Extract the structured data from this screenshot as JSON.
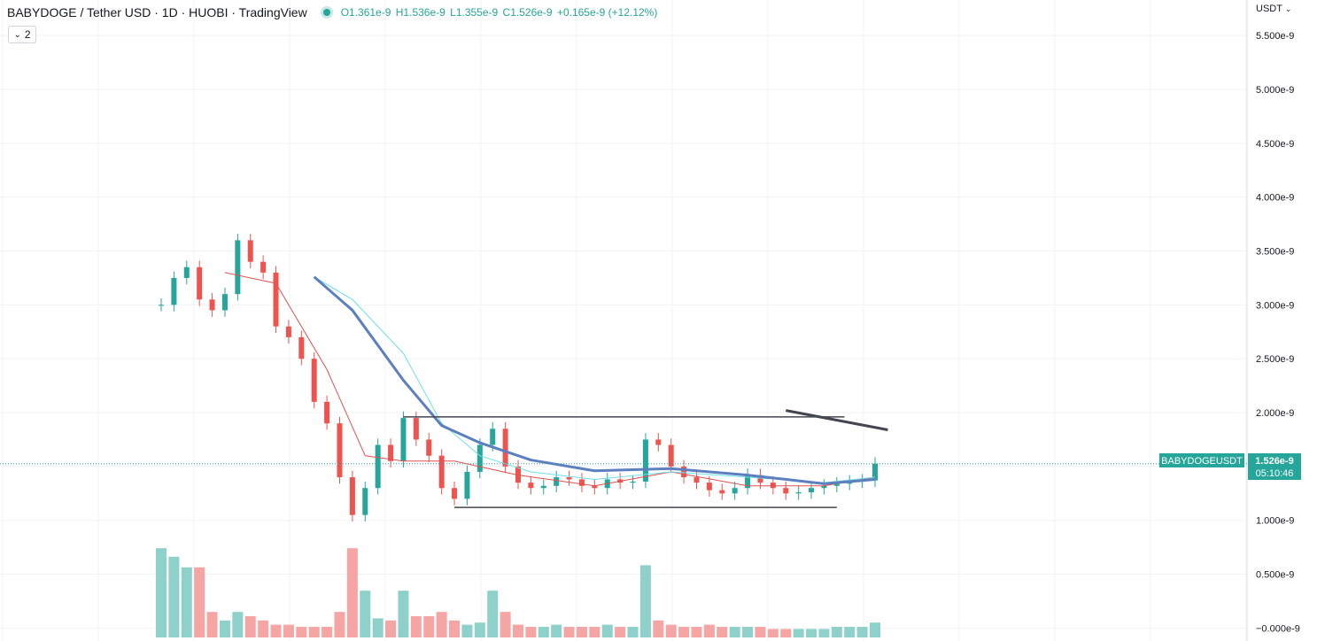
{
  "header": {
    "title": "BABYDOGE / Tether USD · 1D · HUOBI · TradingView",
    "ohlc": {
      "open": "O1.361e-9",
      "high": "H1.536e-9",
      "low": "L1.355e-9",
      "close": "C1.526e-9",
      "change": "+0.165e-9 (+12.12%)"
    },
    "indicator_count": "2",
    "currency": "USDT"
  },
  "price_label": {
    "symbol": "BABYDOGEUSDT",
    "price": "1.526e-9",
    "countdown": "05:10:46"
  },
  "colors": {
    "up": "#26a69a",
    "down": "#ef5350",
    "ma_fast": "#e05050",
    "ma_mid": "#6fe0e8",
    "ma_slow": "#5b7fbf",
    "drawing": "#434651"
  },
  "chart_data": {
    "type": "line",
    "title": "BABYDOGE / Tether USD · 1D · HUOBI · TradingView",
    "ylim": [
      -0.12,
      5.83
    ],
    "y_tick_values": [
      5.5,
      5.0,
      4.5,
      4.0,
      3.5,
      3.0,
      2.5,
      2.0,
      1.5,
      1.0,
      0.5,
      0.0
    ],
    "y_tick_labels": [
      "5.500e-9",
      "5.000e-9",
      "4.500e-9",
      "4.000e-9",
      "3.500e-9",
      "3.000e-9",
      "2.500e-9",
      "2.000e-9",
      "1.500e-9",
      "1.000e-9",
      "0.500e-9",
      "−0.000e-9"
    ],
    "grid": true,
    "close_series": {
      "name": "BABYDOGEUSDT",
      "x": [
        0,
        5,
        10,
        15,
        20,
        25,
        30,
        35,
        40,
        45,
        50,
        55,
        60,
        65,
        70,
        75,
        80,
        85,
        90,
        95,
        100,
        105,
        110,
        115,
        120,
        125,
        130,
        135,
        140,
        145,
        150,
        155,
        160,
        165,
        170,
        175,
        180,
        185,
        190,
        195,
        200,
        205,
        210,
        215,
        220,
        225,
        230,
        235,
        240,
        245,
        250,
        255,
        260,
        265,
        270,
        275,
        280
      ],
      "values": [
        3.0,
        3.25,
        3.35,
        3.05,
        2.95,
        3.1,
        3.6,
        3.4,
        3.3,
        2.8,
        2.7,
        2.5,
        2.1,
        1.9,
        1.4,
        1.05,
        1.3,
        1.7,
        1.55,
        1.95,
        1.75,
        1.6,
        1.3,
        1.2,
        1.45,
        1.7,
        1.85,
        1.5,
        1.35,
        1.3,
        1.32,
        1.4,
        1.38,
        1.32,
        1.3,
        1.38,
        1.35,
        1.36,
        1.75,
        1.7,
        1.5,
        1.4,
        1.35,
        1.28,
        1.25,
        1.3,
        1.42,
        1.35,
        1.3,
        1.25,
        1.26,
        1.3,
        1.32,
        1.34,
        1.36,
        1.37,
        1.526
      ]
    },
    "ma_series": [
      {
        "x": [
          25,
          45,
          65,
          80,
          95,
          115,
          140,
          170,
          200,
          230,
          260,
          280
        ],
        "values": [
          3.3,
          3.2,
          2.4,
          1.6,
          1.55,
          1.55,
          1.42,
          1.32,
          1.45,
          1.32,
          1.32,
          1.4
        ]
      },
      {
        "x": [
          60,
          75,
          95,
          110,
          125,
          145,
          170,
          200,
          230,
          260,
          280
        ],
        "values": [
          3.26,
          3.05,
          2.55,
          1.9,
          1.6,
          1.45,
          1.38,
          1.45,
          1.4,
          1.35,
          1.4
        ]
      },
      {
        "x": [
          60,
          75,
          95,
          110,
          125,
          145,
          170,
          200,
          230,
          260,
          280
        ],
        "values": [
          3.26,
          2.95,
          2.3,
          1.88,
          1.72,
          1.56,
          1.46,
          1.48,
          1.42,
          1.34,
          1.38
        ]
      }
    ],
    "volume": {
      "x": [
        0,
        5,
        10,
        15,
        20,
        25,
        30,
        35,
        40,
        45,
        50,
        55,
        60,
        65,
        70,
        75,
        80,
        85,
        90,
        95,
        100,
        105,
        110,
        115,
        120,
        125,
        130,
        135,
        140,
        145,
        150,
        155,
        160,
        165,
        170,
        175,
        180,
        185,
        190,
        195,
        200,
        205,
        210,
        215,
        220,
        225,
        230,
        235,
        240,
        245,
        250,
        255,
        260,
        265,
        270,
        275,
        280
      ],
      "values": [
        0.42,
        0.38,
        0.33,
        0.33,
        0.12,
        0.08,
        0.12,
        0.1,
        0.08,
        0.06,
        0.06,
        0.05,
        0.05,
        0.05,
        0.12,
        0.42,
        0.22,
        0.09,
        0.08,
        0.22,
        0.1,
        0.1,
        0.12,
        0.08,
        0.06,
        0.07,
        0.22,
        0.12,
        0.06,
        0.05,
        0.05,
        0.06,
        0.05,
        0.05,
        0.05,
        0.06,
        0.05,
        0.05,
        0.34,
        0.08,
        0.06,
        0.05,
        0.05,
        0.06,
        0.05,
        0.05,
        0.05,
        0.05,
        0.04,
        0.04,
        0.04,
        0.04,
        0.04,
        0.05,
        0.05,
        0.05,
        0.07
      ]
    },
    "trend_lines": [
      {
        "x1": 95,
        "y1": 1.96,
        "x2": 268,
        "y2": 1.96
      },
      {
        "x1": 115,
        "y1": 1.12,
        "x2": 265,
        "y2": 1.12
      },
      {
        "x1": 245,
        "y1": 2.02,
        "x2": 285,
        "y2": 1.84
      }
    ],
    "last_price": 1.526
  }
}
